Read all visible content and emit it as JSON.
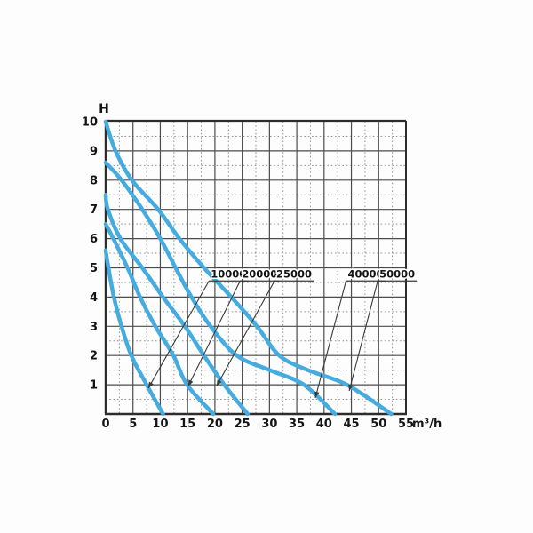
{
  "page": {
    "background": "#fdfdfd"
  },
  "chart_data": {
    "type": "line",
    "title": "",
    "ylabel": "H",
    "xlabel": "m³/h",
    "xlim": [
      0,
      55
    ],
    "ylim": [
      0,
      10
    ],
    "x_major_ticks": [
      0,
      5,
      10,
      15,
      20,
      25,
      30,
      35,
      40,
      45,
      50,
      55
    ],
    "y_major_ticks": [
      1,
      2,
      3,
      4,
      5,
      6,
      7,
      8,
      9,
      10
    ],
    "x_minor_step": 2.5,
    "y_minor_step": 0.5,
    "grid": "major-solid minor-dotted",
    "legend_position": "inline-callouts",
    "colors": {
      "curve": "#46ACE0",
      "grid_major": "#4c4c4c",
      "grid_minor": "#8f8f8f",
      "axis": "#2d2d2d",
      "text": "#141414",
      "leader": "#3a3a3a"
    },
    "series": [
      {
        "name": "10000",
        "points": [
          [
            0,
            5.6
          ],
          [
            0.5,
            5
          ],
          [
            1.5,
            4
          ],
          [
            2.9,
            3
          ],
          [
            4.7,
            2
          ],
          [
            7.5,
            1
          ],
          [
            10.5,
            0
          ]
        ]
      },
      {
        "name": "20000",
        "points": [
          [
            0,
            6.5
          ],
          [
            1.4,
            6
          ],
          [
            4,
            5
          ],
          [
            6.3,
            4
          ],
          [
            9.1,
            3
          ],
          [
            12.4,
            2
          ],
          [
            14.9,
            1
          ],
          [
            19.7,
            0
          ]
        ]
      },
      {
        "name": "25000",
        "points": [
          [
            0,
            7.5
          ],
          [
            0.4,
            7
          ],
          [
            2.7,
            6
          ],
          [
            6.7,
            5
          ],
          [
            10.5,
            4
          ],
          [
            14.5,
            3
          ],
          [
            18,
            2
          ],
          [
            21.7,
            1
          ],
          [
            26,
            0
          ]
        ]
      },
      {
        "name": "40000",
        "points": [
          [
            0,
            8.6
          ],
          [
            2.9,
            8
          ],
          [
            6.7,
            7
          ],
          [
            10,
            6
          ],
          [
            12.8,
            5
          ],
          [
            15.7,
            4
          ],
          [
            19.2,
            3
          ],
          [
            24,
            2
          ],
          [
            30,
            1.5
          ],
          [
            36.3,
            1
          ],
          [
            42,
            0
          ]
        ]
      },
      {
        "name": "50000",
        "points": [
          [
            0,
            10
          ],
          [
            1.8,
            9
          ],
          [
            4.8,
            8
          ],
          [
            9.6,
            7
          ],
          [
            13.5,
            6
          ],
          [
            18,
            5
          ],
          [
            23,
            4
          ],
          [
            27.7,
            3
          ],
          [
            31.8,
            2
          ],
          [
            37,
            1.5
          ],
          [
            44.2,
            1
          ],
          [
            52.3,
            0
          ]
        ]
      }
    ],
    "callouts": [
      {
        "label": "10000",
        "label_x": 22.5,
        "label_y": 4.78,
        "tip_x": 7.8,
        "tip_y": 0.88
      },
      {
        "label": "20000",
        "label_x": 28.2,
        "label_y": 4.78,
        "tip_x": 15.1,
        "tip_y": 0.95
      },
      {
        "label": "25000",
        "label_x": 34.5,
        "label_y": 4.78,
        "tip_x": 20.3,
        "tip_y": 0.95
      },
      {
        "label": "40000",
        "label_x": 47.6,
        "label_y": 4.78,
        "tip_x": 38.4,
        "tip_y": 0.55
      },
      {
        "label": "50000",
        "label_x": 53.4,
        "label_y": 4.78,
        "tip_x": 44.6,
        "tip_y": 0.79
      }
    ]
  }
}
